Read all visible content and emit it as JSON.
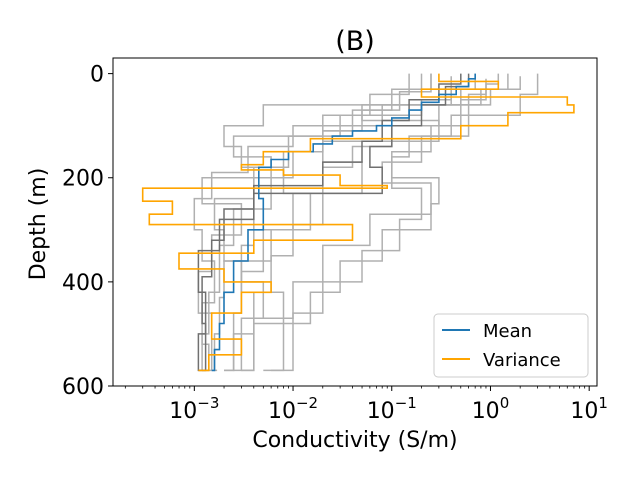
{
  "chart_data": {
    "type": "line",
    "title": "(B)",
    "xlabel": "Conductivity (S/m)",
    "ylabel": "Depth (m)",
    "x_scale": "log",
    "y_inverted": true,
    "xlim": [
      0.00015,
      12
    ],
    "ylim": [
      600,
      -30
    ],
    "x_ticks": [
      {
        "value": 0.001,
        "base": "10",
        "exp": "−3"
      },
      {
        "value": 0.01,
        "base": "10",
        "exp": "−2"
      },
      {
        "value": 0.1,
        "base": "10",
        "exp": "−1"
      },
      {
        "value": 1,
        "base": "10",
        "exp": "0"
      },
      {
        "value": 10,
        "base": "10",
        "exp": "1"
      }
    ],
    "y_ticks": [
      0,
      200,
      400,
      600
    ],
    "legend": {
      "position": "bottom-right",
      "entries": [
        "Mean",
        "Variance"
      ]
    },
    "colors": {
      "mean": "#1f77b4",
      "variance": "#ffa500",
      "samples": "#b0b0b0",
      "samples_dark": "#707070"
    },
    "series": [
      {
        "name": "Mean",
        "role": "mean",
        "points": [
          [
            0.7,
            0
          ],
          [
            0.6,
            10
          ],
          [
            0.45,
            25
          ],
          [
            0.3,
            40
          ],
          [
            0.2,
            55
          ],
          [
            0.15,
            70
          ],
          [
            0.1,
            85
          ],
          [
            0.07,
            100
          ],
          [
            0.04,
            110
          ],
          [
            0.025,
            120
          ],
          [
            0.016,
            135
          ],
          [
            0.009,
            150
          ],
          [
            0.006,
            165
          ],
          [
            0.0045,
            180
          ],
          [
            0.005,
            240
          ],
          [
            0.0035,
            300
          ],
          [
            0.0025,
            360
          ],
          [
            0.002,
            420
          ],
          [
            0.0018,
            480
          ],
          [
            0.0016,
            530
          ],
          [
            0.0015,
            570
          ]
        ]
      },
      {
        "name": "Variance",
        "role": "variance",
        "points": [
          [
            0.3,
            0
          ],
          [
            1.2,
            15
          ],
          [
            0.2,
            30
          ],
          [
            6,
            45
          ],
          [
            7,
            60
          ],
          [
            1.5,
            75
          ],
          [
            0.5,
            100
          ],
          [
            0.015,
            125
          ],
          [
            0.005,
            150
          ],
          [
            0.003,
            175
          ],
          [
            0.008,
            185
          ],
          [
            0.03,
            195
          ],
          [
            0.09,
            215
          ],
          [
            0.0003,
            220
          ],
          [
            0.0006,
            245
          ],
          [
            0.00035,
            270
          ],
          [
            0.04,
            290
          ],
          [
            0.004,
            320
          ],
          [
            0.0007,
            345
          ],
          [
            0.002,
            375
          ],
          [
            0.006,
            400
          ],
          [
            0.003,
            420
          ],
          [
            0.0015,
            460
          ],
          [
            0.003,
            510
          ],
          [
            0.0014,
            540
          ],
          [
            0.0011,
            570
          ]
        ]
      },
      {
        "role": "sample",
        "points": [
          [
            1.5,
            0
          ],
          [
            0.8,
            30
          ],
          [
            0.3,
            60
          ],
          [
            0.1,
            100
          ],
          [
            0.04,
            140
          ],
          [
            0.02,
            180
          ],
          [
            0.01,
            230
          ],
          [
            0.005,
            300
          ],
          [
            0.003,
            380
          ],
          [
            0.0025,
            460
          ],
          [
            0.002,
            570
          ]
        ]
      },
      {
        "role": "sample",
        "points": [
          [
            3,
            0
          ],
          [
            2,
            40
          ],
          [
            0.6,
            80
          ],
          [
            0.2,
            120
          ],
          [
            0.08,
            170
          ],
          [
            0.25,
            210
          ],
          [
            0.06,
            270
          ],
          [
            0.02,
            330
          ],
          [
            0.01,
            400
          ],
          [
            0.004,
            470
          ],
          [
            0.003,
            570
          ]
        ]
      },
      {
        "role": "sample",
        "points": [
          [
            0.25,
            0
          ],
          [
            0.12,
            35
          ],
          [
            0.05,
            70
          ],
          [
            0.02,
            110
          ],
          [
            0.008,
            150
          ],
          [
            0.004,
            200
          ],
          [
            0.0025,
            260
          ],
          [
            0.0018,
            330
          ],
          [
            0.0014,
            420
          ],
          [
            0.0012,
            500
          ],
          [
            0.0011,
            570
          ]
        ]
      },
      {
        "role": "sample",
        "points": [
          [
            0.4,
            5
          ],
          [
            0.2,
            50
          ],
          [
            0.03,
            80
          ],
          [
            0.0025,
            120
          ],
          [
            0.006,
            160
          ],
          [
            0.0012,
            200
          ],
          [
            0.003,
            250
          ],
          [
            0.0015,
            310
          ],
          [
            0.0011,
            380
          ],
          [
            0.0015,
            460
          ],
          [
            0.0013,
            570
          ]
        ]
      },
      {
        "role": "sample",
        "points": [
          [
            0.9,
            10
          ],
          [
            0.6,
            40
          ],
          [
            0.4,
            80
          ],
          [
            0.15,
            120
          ],
          [
            0.1,
            160
          ],
          [
            0.2,
            220
          ],
          [
            0.12,
            280
          ],
          [
            0.05,
            340
          ],
          [
            0.02,
            400
          ],
          [
            0.01,
            460
          ],
          [
            0.006,
            570
          ]
        ]
      },
      {
        "role": "sample",
        "points": [
          [
            0.15,
            0
          ],
          [
            0.06,
            40
          ],
          [
            0.02,
            80
          ],
          [
            0.009,
            120
          ],
          [
            0.004,
            180
          ],
          [
            0.0016,
            240
          ],
          [
            0.002,
            300
          ],
          [
            0.003,
            360
          ],
          [
            0.004,
            420
          ],
          [
            0.0025,
            500
          ],
          [
            0.002,
            570
          ]
        ]
      },
      {
        "role": "sample-dark",
        "points": [
          [
            0.5,
            0
          ],
          [
            0.3,
            20
          ],
          [
            0.15,
            50
          ],
          [
            0.08,
            90
          ],
          [
            0.05,
            130
          ],
          [
            0.02,
            170
          ],
          [
            0.004,
            215
          ],
          [
            0.002,
            260
          ],
          [
            0.0015,
            320
          ],
          [
            0.0012,
            390
          ],
          [
            0.0013,
            480
          ],
          [
            0.0012,
            570
          ]
        ]
      },
      {
        "role": "sample-dark",
        "points": [
          [
            0.6,
            0
          ],
          [
            0.35,
            25
          ],
          [
            0.2,
            60
          ],
          [
            0.1,
            100
          ],
          [
            0.06,
            140
          ],
          [
            0.08,
            180
          ],
          [
            0.004,
            230
          ],
          [
            0.0018,
            280
          ],
          [
            0.0011,
            340
          ],
          [
            0.0013,
            420
          ],
          [
            0.0011,
            500
          ],
          [
            0.0013,
            570
          ]
        ]
      },
      {
        "role": "sample",
        "points": [
          [
            0.25,
            0
          ],
          [
            0.5,
            30
          ],
          [
            0.08,
            60
          ],
          [
            0.01,
            100
          ],
          [
            0.0035,
            140
          ],
          [
            0.0015,
            190
          ],
          [
            0.001,
            240
          ],
          [
            0.0012,
            300
          ],
          [
            0.0016,
            360
          ],
          [
            0.0012,
            440
          ],
          [
            0.0014,
            520
          ],
          [
            0.0012,
            570
          ]
        ]
      },
      {
        "role": "sample",
        "points": [
          [
            1.2,
            0
          ],
          [
            0.9,
            20
          ],
          [
            0.5,
            50
          ],
          [
            0.25,
            100
          ],
          [
            0.1,
            150
          ],
          [
            0.3,
            200
          ],
          [
            0.25,
            250
          ],
          [
            0.08,
            300
          ],
          [
            0.03,
            360
          ],
          [
            0.015,
            420
          ],
          [
            0.008,
            480
          ],
          [
            0.005,
            570
          ]
        ]
      },
      {
        "role": "sample",
        "points": [
          [
            0.2,
            0
          ],
          [
            0.1,
            30
          ],
          [
            0.04,
            70
          ],
          [
            0.02,
            110
          ],
          [
            0.01,
            150
          ],
          [
            0.006,
            200
          ],
          [
            0.004,
            260
          ],
          [
            0.003,
            330
          ],
          [
            0.005,
            400
          ],
          [
            0.003,
            470
          ],
          [
            0.0025,
            570
          ]
        ]
      },
      {
        "role": "sample",
        "points": [
          [
            2,
            5
          ],
          [
            1,
            30
          ],
          [
            0.05,
            60
          ],
          [
            0.3,
            90
          ],
          [
            0.02,
            130
          ],
          [
            0.05,
            170
          ],
          [
            0.02,
            230
          ],
          [
            0.01,
            290
          ],
          [
            0.006,
            350
          ],
          [
            0.008,
            420
          ],
          [
            0.004,
            480
          ],
          [
            0.003,
            570
          ]
        ]
      },
      {
        "role": "sample",
        "points": [
          [
            0.7,
            0
          ],
          [
            0.4,
            30
          ],
          [
            0.005,
            60
          ],
          [
            0.002,
            100
          ],
          [
            0.003,
            140
          ],
          [
            0.008,
            180
          ],
          [
            0.015,
            230
          ],
          [
            0.006,
            300
          ],
          [
            0.002,
            360
          ],
          [
            0.0018,
            430
          ],
          [
            0.0016,
            500
          ],
          [
            0.0017,
            570
          ]
        ]
      }
    ]
  }
}
